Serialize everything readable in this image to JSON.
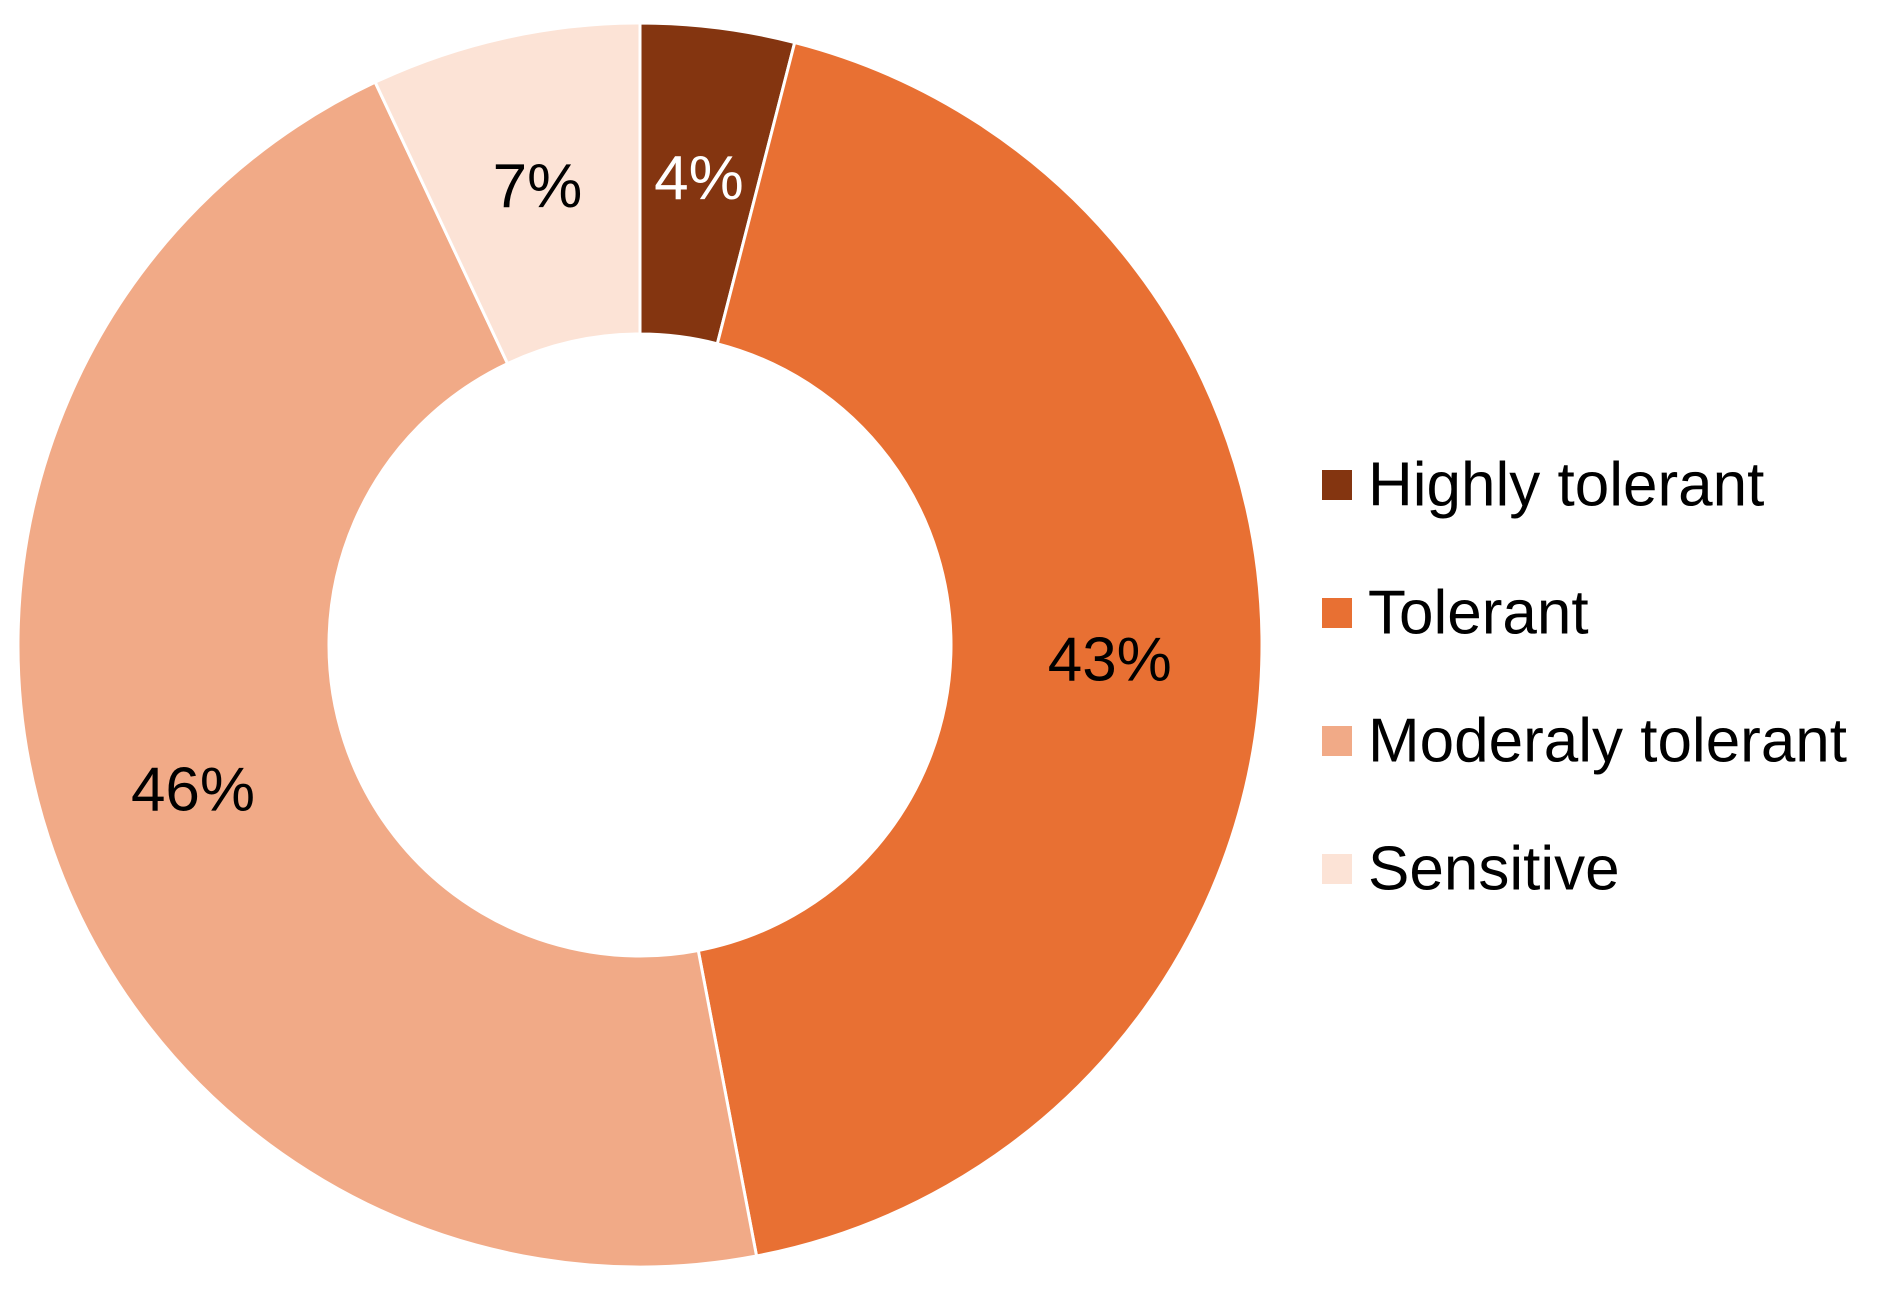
{
  "chart_data": {
    "type": "pie",
    "variant": "donut",
    "title": "",
    "legend_position": "right",
    "slices": [
      {
        "label": "Highly tolerant",
        "value": 4,
        "value_label": "4%",
        "color": "#843510",
        "label_color": "#ffffff"
      },
      {
        "label": "Tolerant",
        "value": 43,
        "value_label": "43%",
        "color": "#e87033",
        "label_color": "#000000"
      },
      {
        "label": "Moderaly tolerant",
        "value": 46,
        "value_label": "46%",
        "color": "#f1aa87",
        "label_color": "#000000"
      },
      {
        "label": "Sensitive",
        "value": 7,
        "value_label": "7%",
        "color": "#fce3d6",
        "label_color": "#000000"
      }
    ]
  }
}
